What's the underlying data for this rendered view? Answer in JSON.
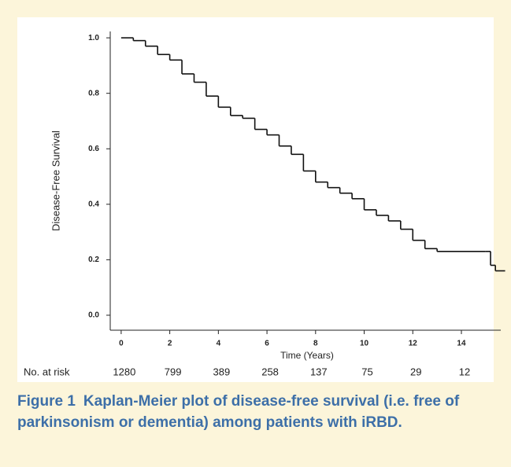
{
  "chart_data": {
    "type": "step",
    "x_label": "Time (Years)",
    "y_label": "Disease-Free Survival",
    "x": [
      0,
      0.5,
      1,
      1.5,
      2,
      2.5,
      3,
      3.5,
      4,
      4.5,
      5,
      5.5,
      6,
      6.5,
      7,
      7.5,
      8,
      8.5,
      9,
      9.5,
      10,
      10.5,
      11,
      11.5,
      12,
      12.5,
      13,
      14,
      15,
      15.2,
      15.4,
      15.8
    ],
    "values": [
      1.0,
      0.99,
      0.97,
      0.94,
      0.92,
      0.87,
      0.84,
      0.79,
      0.75,
      0.72,
      0.71,
      0.67,
      0.65,
      0.61,
      0.58,
      0.52,
      0.48,
      0.46,
      0.44,
      0.42,
      0.38,
      0.36,
      0.34,
      0.31,
      0.27,
      0.24,
      0.23,
      0.23,
      0.23,
      0.18,
      0.16,
      0.16
    ],
    "color": "#111111",
    "xlim": [
      -0.45,
      15.62
    ],
    "ylim": [
      -0.054,
      1.023
    ],
    "xticks": [
      0,
      2,
      4,
      6,
      8,
      10,
      12,
      14
    ],
    "yticks": [
      {
        "value": 0,
        "label": "0.0"
      },
      0.2,
      0.4,
      0.6,
      0.8,
      {
        "value": 1,
        "label": "1.0"
      }
    ],
    "at_risk": {
      "label": "No. at risk",
      "x": [
        0,
        2,
        4,
        6,
        8,
        10,
        12,
        14
      ],
      "values": [
        1280,
        799,
        389,
        258,
        137,
        75,
        29,
        12
      ]
    }
  },
  "caption": {
    "label": "Figure 1",
    "text": "Kaplan-Meier plot of disease-free survival (i.e. free of parkinsonism or dementia) among patients with iRBD."
  }
}
